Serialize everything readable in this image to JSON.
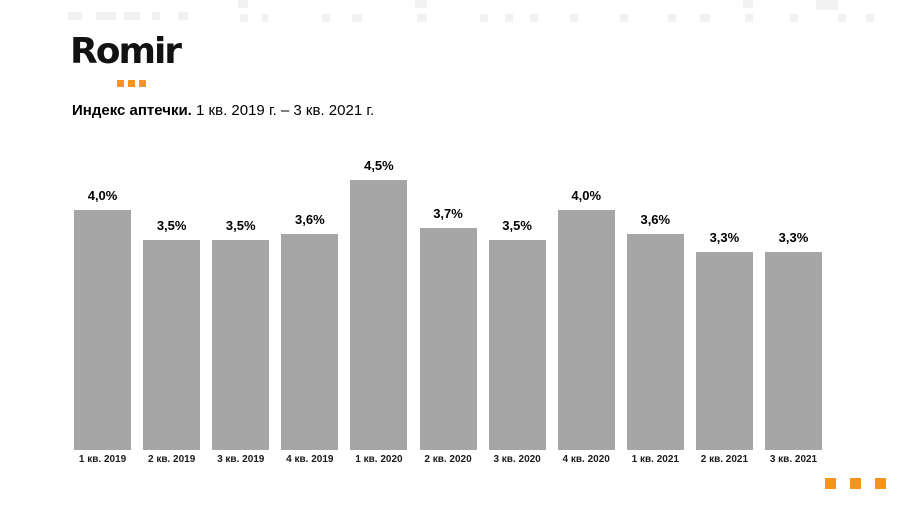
{
  "logo": {
    "text": "Romir",
    "accent_color": "#F7941D"
  },
  "title": {
    "bold": "Индекс аптечки.",
    "period": " 1 кв. 2019 г. – 3 кв. 2021 г."
  },
  "chart_data": {
    "type": "bar",
    "title": "Индекс аптечки. 1 кв. 2019 г. – 3 кв. 2021 г.",
    "categories": [
      "1 кв. 2019",
      "2 кв. 2019",
      "3 кв. 2019",
      "4 кв. 2019",
      "1 кв. 2020",
      "2 кв. 2020",
      "3 кв. 2020",
      "4 кв. 2020",
      "1 кв. 2021",
      "2 кв. 2021",
      "3 кв. 2021"
    ],
    "values": [
      4.0,
      3.5,
      3.5,
      3.6,
      4.5,
      3.7,
      3.5,
      4.0,
      3.6,
      3.3,
      3.3
    ],
    "value_labels": [
      "4,0%",
      "3,5%",
      "3,5%",
      "3,6%",
      "4,5%",
      "3,7%",
      "3,5%",
      "4,0%",
      "3,6%",
      "3,3%",
      "3,3%"
    ],
    "xlabel": "",
    "ylabel": "",
    "ylim": [
      0,
      4.5
    ],
    "bar_color": "#A6A6A6",
    "grid": false,
    "legend": false,
    "data_labels": true
  },
  "footer": {
    "dots_color": "#F7941D"
  }
}
